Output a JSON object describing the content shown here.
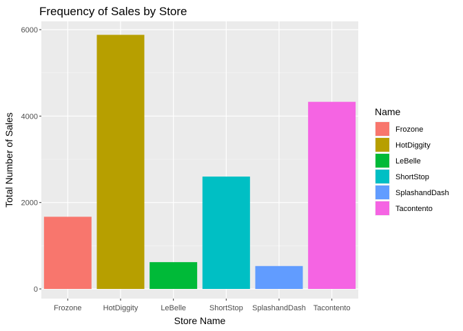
{
  "chart_data": {
    "type": "bar",
    "title": "Frequency of Sales by Store",
    "xlabel": "Store Name",
    "ylabel": "Total Number of Sales",
    "categories": [
      "Frozone",
      "HotDiggity",
      "LeBelle",
      "ShortStop",
      "SplashandDash",
      "Tacontento"
    ],
    "values": [
      1670,
      5880,
      620,
      2600,
      530,
      4330
    ],
    "colors": [
      "#F8766D",
      "#B79F00",
      "#00BA38",
      "#00BFC4",
      "#619CFF",
      "#F564E3"
    ],
    "ylim": [
      0,
      6150
    ],
    "yticks": [
      0,
      2000,
      4000,
      6000
    ],
    "grid": true,
    "legend": {
      "title": "Name",
      "position": "right"
    }
  }
}
